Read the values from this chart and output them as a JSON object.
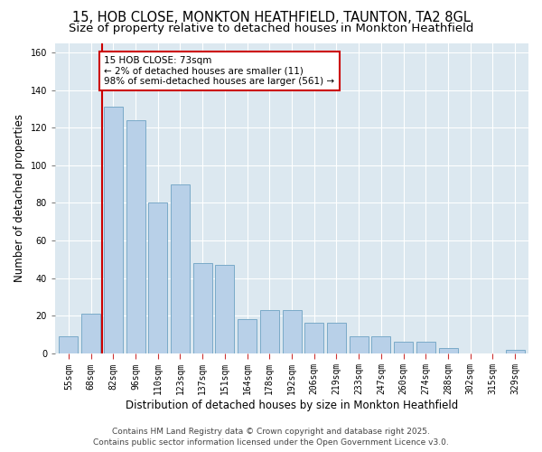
{
  "title1": "15, HOB CLOSE, MONKTON HEATHFIELD, TAUNTON, TA2 8GL",
  "title2": "Size of property relative to detached houses in Monkton Heathfield",
  "xlabel": "Distribution of detached houses by size in Monkton Heathfield",
  "ylabel": "Number of detached properties",
  "categories": [
    "55sqm",
    "68sqm",
    "82sqm",
    "96sqm",
    "110sqm",
    "123sqm",
    "137sqm",
    "151sqm",
    "164sqm",
    "178sqm",
    "192sqm",
    "206sqm",
    "219sqm",
    "233sqm",
    "247sqm",
    "260sqm",
    "274sqm",
    "288sqm",
    "302sqm",
    "315sqm",
    "329sqm"
  ],
  "values": [
    9,
    21,
    131,
    124,
    80,
    90,
    48,
    47,
    18,
    23,
    23,
    16,
    16,
    9,
    9,
    6,
    6,
    3,
    0,
    0,
    2
  ],
  "bar_color": "#b8d0e8",
  "bar_edge_color": "#7aaac8",
  "vline_x": 1.5,
  "vline_color": "#cc0000",
  "annotation_title": "15 HOB CLOSE: 73sqm",
  "annotation_line1": "← 2% of detached houses are smaller (11)",
  "annotation_line2": "98% of semi-detached houses are larger (561) →",
  "annotation_box_color": "#ffffff",
  "annotation_box_edge": "#cc0000",
  "ylim": [
    0,
    165
  ],
  "yticks": [
    0,
    20,
    40,
    60,
    80,
    100,
    120,
    140,
    160
  ],
  "footer1": "Contains HM Land Registry data © Crown copyright and database right 2025.",
  "footer2": "Contains public sector information licensed under the Open Government Licence v3.0.",
  "bg_color": "#ffffff",
  "plot_bg_color": "#dce8f0",
  "title_fontsize": 10.5,
  "subtitle_fontsize": 9.5,
  "axis_label_fontsize": 8.5,
  "tick_fontsize": 7,
  "footer_fontsize": 6.5,
  "annotation_fontsize": 7.5
}
